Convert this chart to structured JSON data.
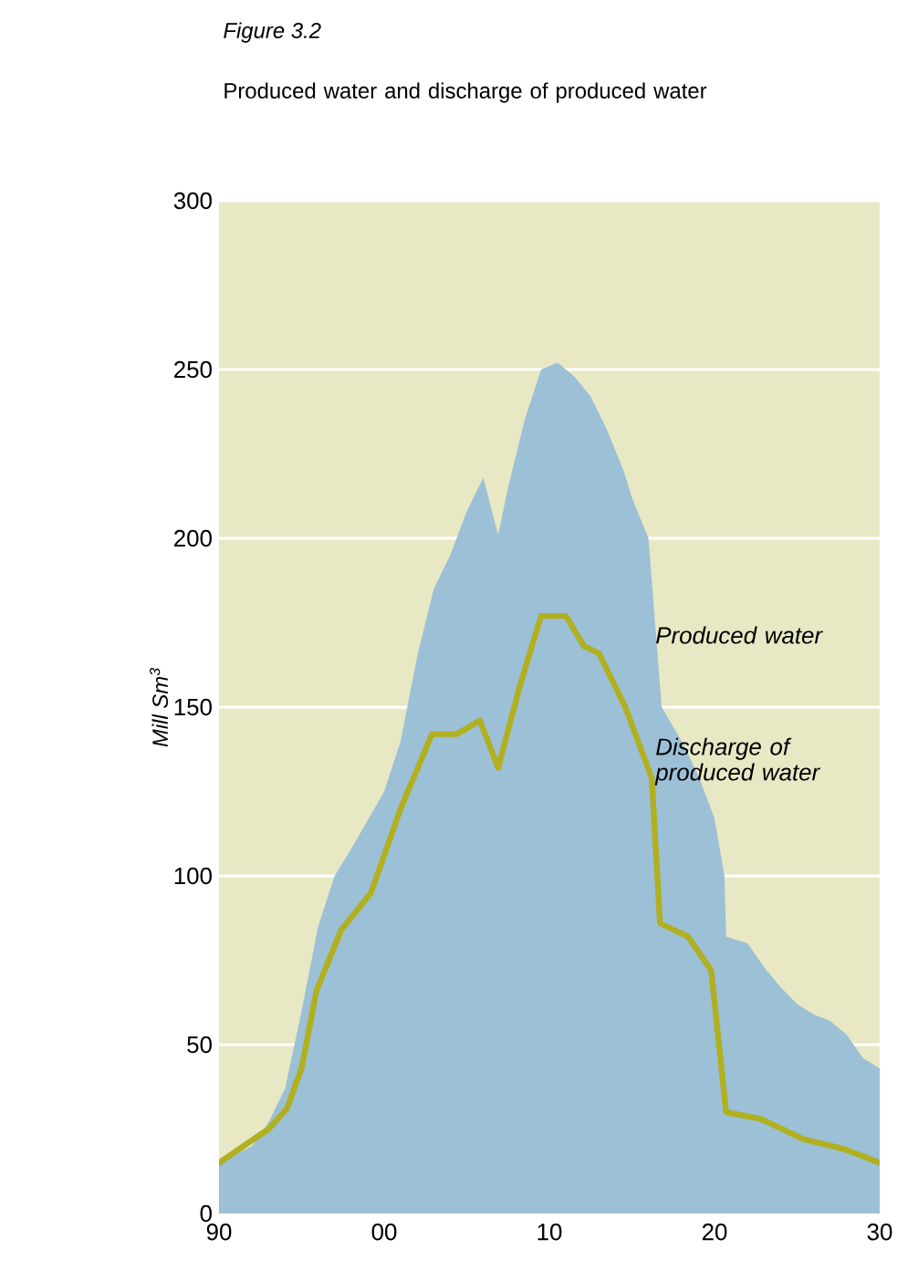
{
  "chart_data": {
    "type": "area",
    "title": "Figure 3.2",
    "subtitle": "Produced water and discharge of produced water",
    "ylabel": "Mill Sm$^{3}$",
    "xlim": [
      1990,
      2030
    ],
    "ylim": [
      0,
      300
    ],
    "xticks": [
      {
        "value": 1990,
        "label": "90"
      },
      {
        "value": 2000,
        "label": "00"
      },
      {
        "value": 2010,
        "label": "10"
      },
      {
        "value": 2020,
        "label": "20"
      },
      {
        "value": 2030,
        "label": "30"
      }
    ],
    "yticks": [
      0,
      50,
      100,
      150,
      200,
      250,
      300
    ],
    "grid": "y",
    "series": [
      {
        "name": "Produced water",
        "color": "#9cc0d6",
        "x": [
          1990,
          1992,
          1993,
          1994,
          1995,
          1996,
          1997,
          1998,
          2000,
          2001,
          2002,
          2003,
          2004,
          2005,
          2006,
          2006.9,
          2007.5,
          2008.5,
          2009.5,
          2010.5,
          2011.5,
          2012.5,
          2013.5,
          2014.5,
          2015,
          2016,
          2016.8,
          2018,
          2019,
          2020,
          2020.6,
          2020.7,
          2022,
          2023,
          2024,
          2025,
          2026,
          2027,
          2028,
          2029,
          2030
        ],
        "values": [
          15,
          20,
          27,
          37,
          60,
          85,
          100,
          108,
          125,
          140,
          165,
          185,
          195,
          208,
          218,
          201,
          215,
          235,
          250,
          252,
          248,
          242,
          232,
          220,
          212,
          200,
          150,
          140,
          130,
          117,
          100,
          82,
          80,
          73,
          67,
          62,
          59,
          57,
          53,
          46,
          43
        ]
      },
      {
        "type": "line",
        "name": "Discharge of produced water",
        "color": "#b0b020",
        "x": [
          1990,
          1993,
          1994.1,
          1995,
          1995.9,
          1997.4,
          1999.2,
          2001,
          2002.9,
          2004.4,
          2005.8,
          2006.9,
          2008.2,
          2009.5,
          2011,
          2012.1,
          2013,
          2014.6,
          2016.2,
          2016.7,
          2018.4,
          2019.8,
          2020.7,
          2022.8,
          2025.4,
          2027.9,
          2030
        ],
        "values": [
          15,
          25,
          31,
          43,
          66,
          84,
          95,
          120,
          142,
          142,
          146,
          132,
          156,
          177,
          177,
          168,
          166,
          150,
          129,
          86,
          82,
          72,
          30,
          28,
          22,
          19,
          15
        ]
      }
    ]
  }
}
